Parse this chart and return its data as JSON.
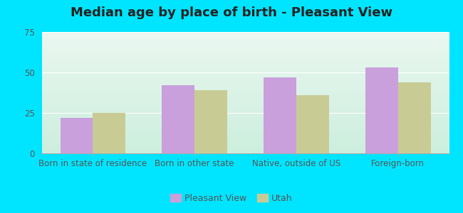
{
  "title": "Median age by place of birth - Pleasant View",
  "categories": [
    "Born in state of residence",
    "Born in other state",
    "Native, outside of US",
    "Foreign-born"
  ],
  "pleasant_view": [
    22,
    42,
    47,
    53
  ],
  "utah": [
    25,
    39,
    36,
    44
  ],
  "pleasant_view_color": "#c9a0dc",
  "utah_color": "#c8cc94",
  "bar_width": 0.32,
  "ylim": [
    0,
    75
  ],
  "yticks": [
    0,
    25,
    50,
    75
  ],
  "bg_outer": "#00e5ff",
  "bg_chart_top": "#eaf7f0",
  "bg_chart_bottom": "#cceedd",
  "legend_labels": [
    "Pleasant View",
    "Utah"
  ],
  "title_fontsize": 13,
  "tick_fontsize": 8.5,
  "legend_fontsize": 9
}
